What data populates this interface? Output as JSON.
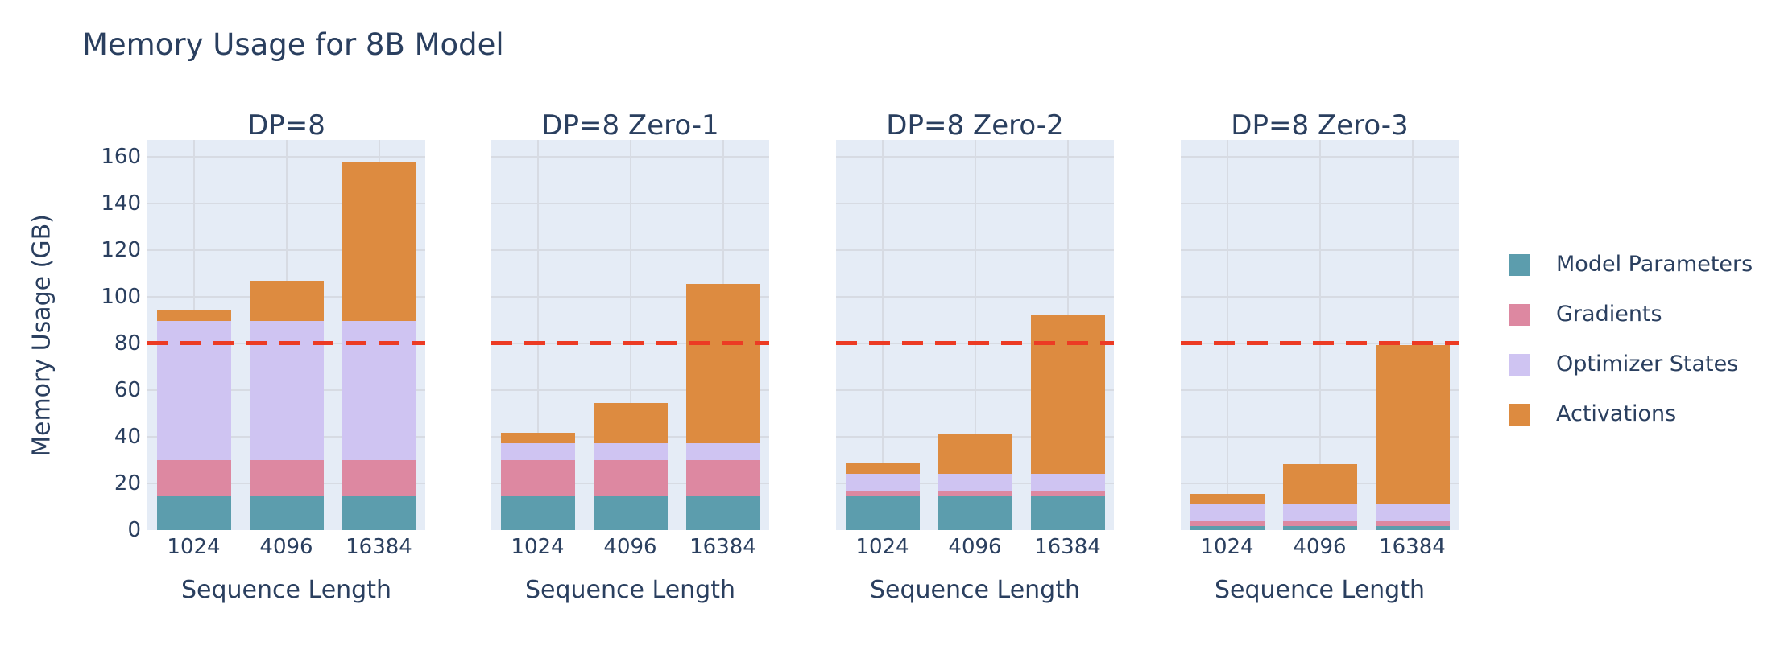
{
  "title": "Memory Usage for 8B Model",
  "y_axis": {
    "label": "Memory Usage (GB)",
    "ticks": [
      "0",
      "20",
      "40",
      "60",
      "80",
      "100",
      "120",
      "140",
      "160"
    ]
  },
  "x_axis": {
    "label": "Sequence Length",
    "categories": [
      "1024",
      "4096",
      "16384"
    ]
  },
  "legend": {
    "items": [
      {
        "label": "Model Parameters",
        "color": "#5c9dad"
      },
      {
        "label": "Gradients",
        "color": "#dd88a1"
      },
      {
        "label": "Optimizer States",
        "color": "#cfc4f2"
      },
      {
        "label": "Activations",
        "color": "#dd8b40"
      }
    ]
  },
  "threshold": {
    "value": 80,
    "color": "#ec3b24",
    "style": "dashed"
  },
  "colors": {
    "plot_background": "#e5ecf6",
    "gridline": "#d7dbe3",
    "text": "#2a3f5f"
  },
  "chart_data": {
    "type": "bar",
    "stacked": true,
    "title": "Memory Usage for 8B Model",
    "xlabel": "Sequence Length",
    "ylabel": "Memory Usage (GB)",
    "ylim": [
      0,
      167
    ],
    "yticks": [
      0,
      20,
      40,
      60,
      80,
      100,
      120,
      140,
      160
    ],
    "categories": [
      "1024",
      "4096",
      "16384"
    ],
    "grid": true,
    "legend_position": "right",
    "threshold_line_y": 80,
    "subplots": [
      {
        "title": "DP=8",
        "series": [
          {
            "name": "Model Parameters",
            "values": [
              14.96,
              14.96,
              14.96
            ]
          },
          {
            "name": "Gradients",
            "values": [
              14.96,
              14.96,
              14.96
            ]
          },
          {
            "name": "Optimizer States",
            "values": [
              59.84,
              59.84,
              59.84
            ]
          },
          {
            "name": "Activations",
            "values": [
              4.27,
              17.07,
              68.27
            ]
          }
        ],
        "totals": [
          94.03,
          106.83,
          158.03
        ]
      },
      {
        "title": "DP=8 Zero-1",
        "series": [
          {
            "name": "Model Parameters",
            "values": [
              14.96,
              14.96,
              14.96
            ]
          },
          {
            "name": "Gradients",
            "values": [
              14.96,
              14.96,
              14.96
            ]
          },
          {
            "name": "Optimizer States",
            "values": [
              7.48,
              7.48,
              7.48
            ]
          },
          {
            "name": "Activations",
            "values": [
              4.27,
              17.07,
              68.27
            ]
          }
        ],
        "totals": [
          41.67,
          54.47,
          105.67
        ]
      },
      {
        "title": "DP=8 Zero-2",
        "series": [
          {
            "name": "Model Parameters",
            "values": [
              14.96,
              14.96,
              14.96
            ]
          },
          {
            "name": "Gradients",
            "values": [
              1.87,
              1.87,
              1.87
            ]
          },
          {
            "name": "Optimizer States",
            "values": [
              7.48,
              7.48,
              7.48
            ]
          },
          {
            "name": "Activations",
            "values": [
              4.27,
              17.07,
              68.27
            ]
          }
        ],
        "totals": [
          28.58,
          41.38,
          92.58
        ]
      },
      {
        "title": "DP=8 Zero-3",
        "series": [
          {
            "name": "Model Parameters",
            "values": [
              1.87,
              1.87,
              1.87
            ]
          },
          {
            "name": "Gradients",
            "values": [
              1.87,
              1.87,
              1.87
            ]
          },
          {
            "name": "Optimizer States",
            "values": [
              7.48,
              7.48,
              7.48
            ]
          },
          {
            "name": "Activations",
            "values": [
              4.27,
              17.07,
              68.27
            ]
          }
        ],
        "totals": [
          15.49,
          28.29,
          79.49
        ]
      }
    ]
  }
}
